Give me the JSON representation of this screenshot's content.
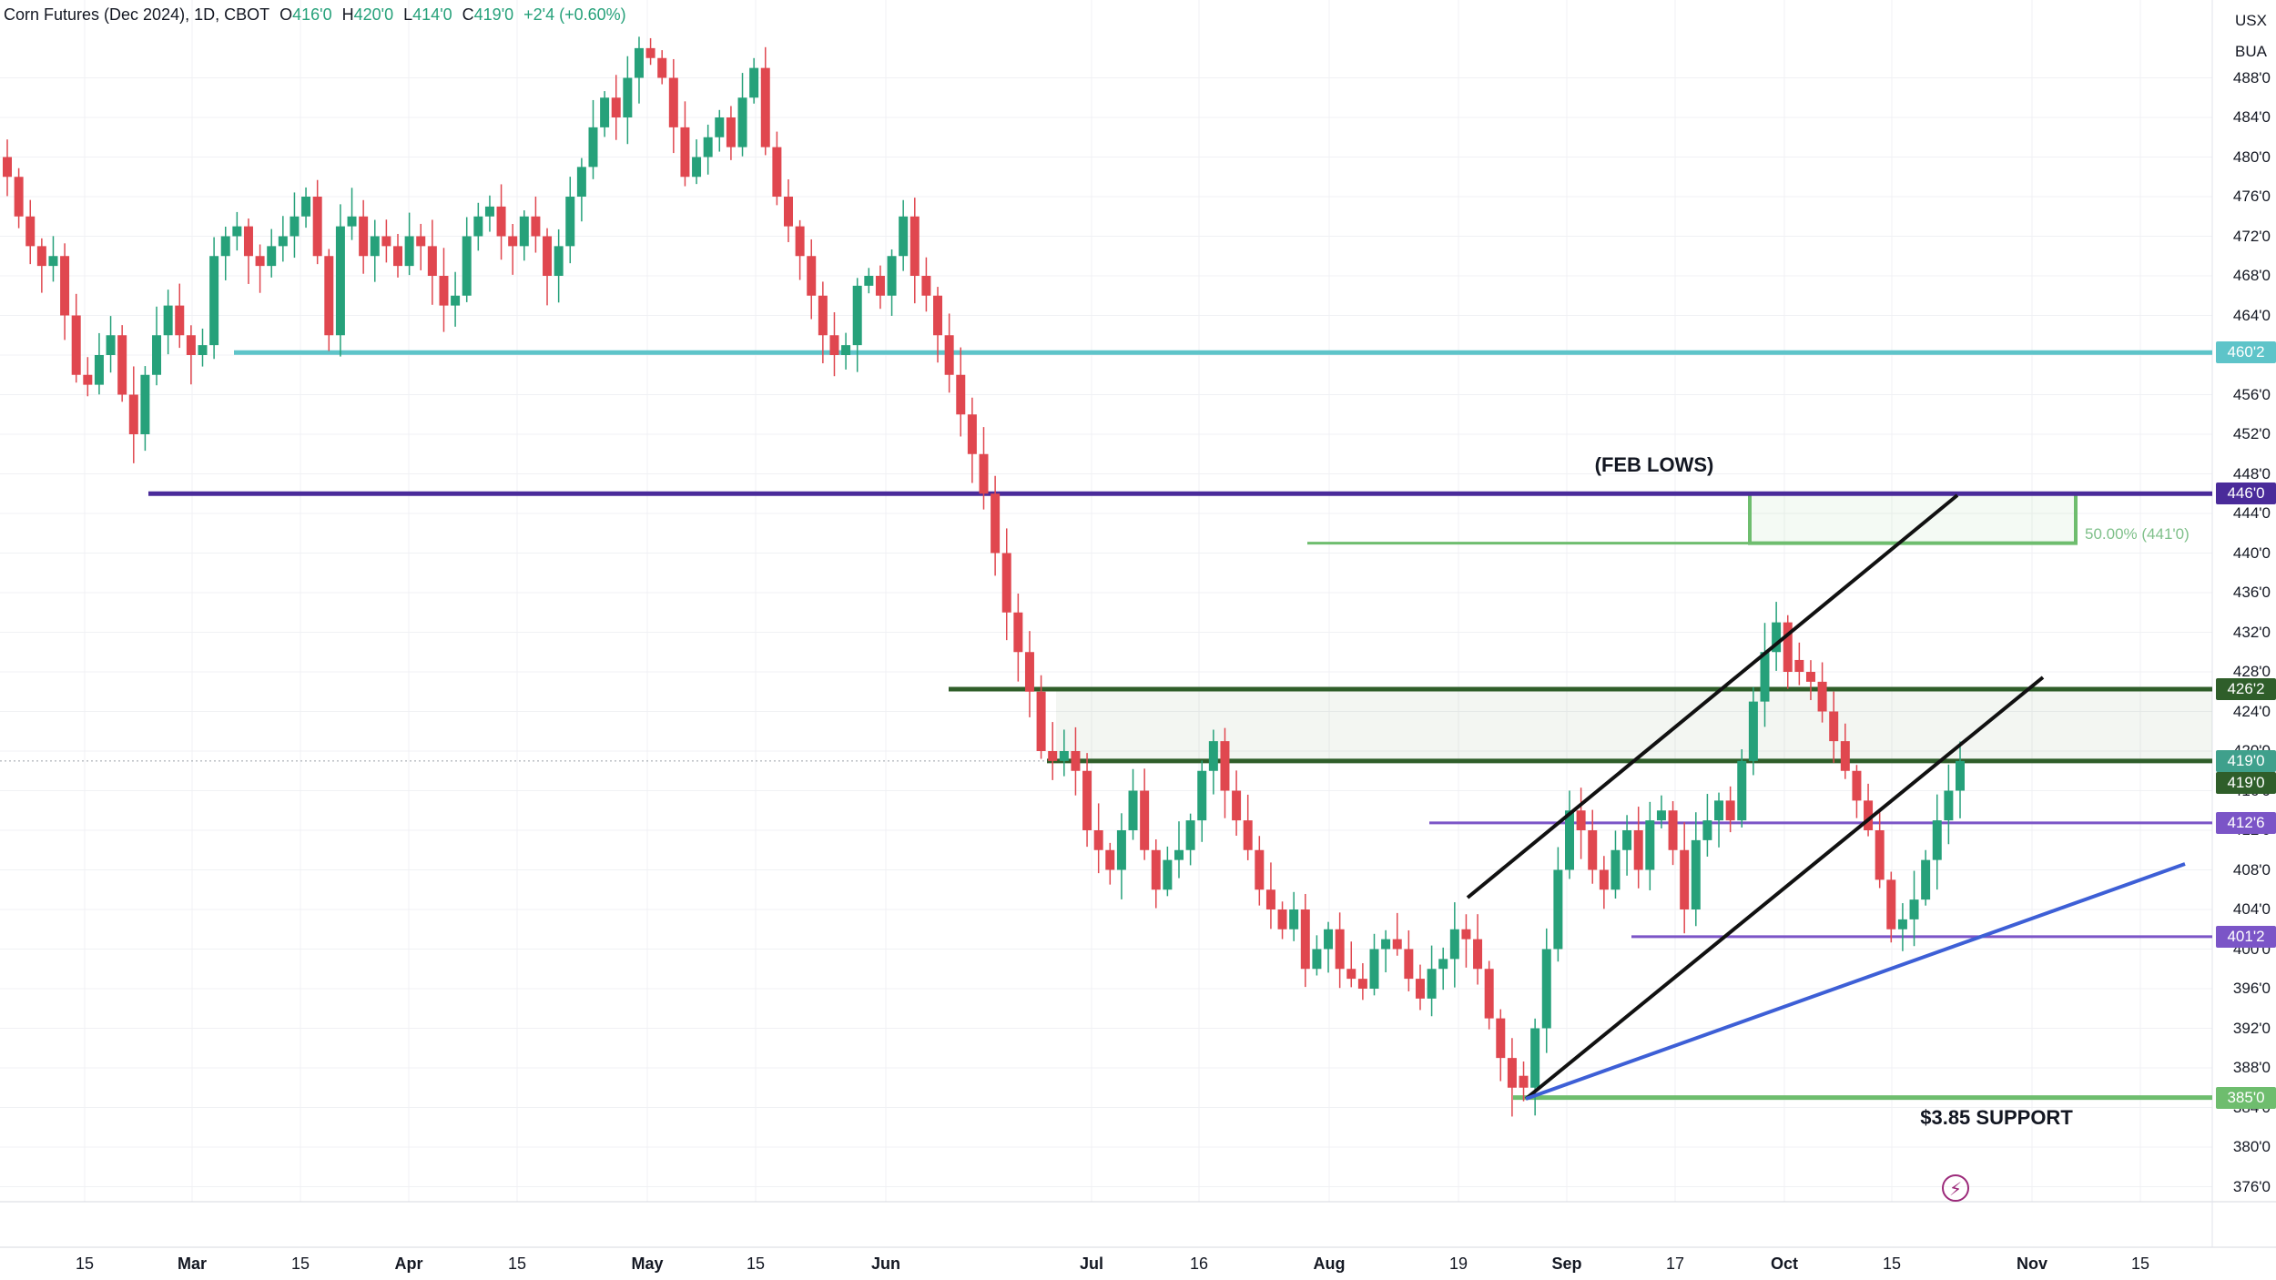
{
  "header": {
    "symbol": "Corn Futures (Dec 2024), 1D, CBOT",
    "open_label": "O",
    "open": "416'0",
    "high_label": "H",
    "high": "420'0",
    "low_label": "L",
    "low": "414'0",
    "close_label": "C",
    "close": "419'0",
    "change": "+2'4 (+0.60%)"
  },
  "currency": {
    "unit": "USX",
    "per": "BUA"
  },
  "colors": {
    "up": "#26a17a",
    "down": "#e0474f"
  },
  "chart_data": {
    "type": "candlestick",
    "y_ticks": [
      "376'0",
      "380'0",
      "384'0",
      "388'0",
      "392'0",
      "396'0",
      "400'0",
      "404'0",
      "408'0",
      "412'0",
      "416'0",
      "420'0",
      "424'0",
      "428'0",
      "432'0",
      "436'0",
      "440'0",
      "444'0",
      "448'0",
      "452'0",
      "456'0",
      "460'0",
      "464'0",
      "468'0",
      "472'0",
      "476'0",
      "480'0",
      "484'0",
      "488'0"
    ],
    "ylim": [
      374,
      494
    ],
    "x_ticks": [
      {
        "label": "15",
        "major": false
      },
      {
        "label": "Mar",
        "major": true
      },
      {
        "label": "15",
        "major": false
      },
      {
        "label": "Apr",
        "major": true
      },
      {
        "label": "15",
        "major": false
      },
      {
        "label": "May",
        "major": true
      },
      {
        "label": "15",
        "major": false
      },
      {
        "label": "Jun",
        "major": true
      },
      {
        "label": "Jul",
        "major": true
      },
      {
        "label": "16",
        "major": false
      },
      {
        "label": "Aug",
        "major": true
      },
      {
        "label": "19",
        "major": false
      },
      {
        "label": "Sep",
        "major": true
      },
      {
        "label": "17",
        "major": false
      },
      {
        "label": "Oct",
        "major": true
      },
      {
        "label": "15",
        "major": false
      },
      {
        "label": "Nov",
        "major": true
      },
      {
        "label": "15",
        "major": false
      }
    ],
    "closes": [
      478,
      474,
      471,
      469,
      470,
      464,
      458,
      457,
      460,
      462,
      456,
      452,
      458,
      462,
      465,
      462,
      460,
      461,
      470,
      472,
      473,
      470,
      469,
      471,
      472,
      474,
      476,
      470,
      462,
      473,
      474,
      470,
      472,
      471,
      469,
      472,
      471,
      468,
      465,
      466,
      472,
      474,
      475,
      472,
      471,
      474,
      472,
      468,
      471,
      476,
      479,
      483,
      486,
      484,
      488,
      491,
      490,
      488,
      483,
      478,
      480,
      482,
      484,
      481,
      486,
      489,
      481,
      476,
      473,
      470,
      466,
      462,
      460,
      461,
      467,
      468,
      466,
      470,
      474,
      468,
      466,
      462,
      458,
      454,
      450,
      446,
      440,
      434,
      430,
      426,
      420,
      419,
      420,
      418,
      412,
      410,
      408,
      412,
      416,
      410,
      406,
      409,
      410,
      413,
      418,
      421,
      416,
      413,
      410,
      406,
      404,
      402,
      404,
      398,
      400,
      402,
      398,
      397,
      396,
      400,
      401,
      400,
      397,
      395,
      398,
      399,
      402,
      401,
      398,
      393,
      389,
      386,
      386,
      392,
      400,
      408,
      414,
      412,
      408,
      406,
      410,
      412,
      408,
      413,
      414,
      410,
      404,
      411,
      413,
      415,
      413,
      419,
      425,
      430,
      433,
      428,
      428,
      427,
      424,
      421,
      418,
      415,
      412,
      407,
      402,
      403,
      405,
      409,
      413,
      416,
      419
    ],
    "levels": [
      {
        "label": "460'2",
        "value": 460.25,
        "color": "#5ec4c9"
      },
      {
        "label": "446'0",
        "value": 446,
        "color": "#4a2b9a"
      },
      {
        "label": "426'2",
        "value": 426.25,
        "color": "#2f5e2a"
      },
      {
        "label": "419'0",
        "value": 419,
        "color": "#2f5e2a"
      },
      {
        "label": "412'6",
        "value": 412.75,
        "color": "#7b55c7"
      },
      {
        "label": "401'2",
        "value": 401.25,
        "color": "#7b55c7"
      },
      {
        "label": "385'0",
        "value": 385,
        "color": "#6ebd6e"
      }
    ],
    "last_price": {
      "label": "419'0",
      "value": 419,
      "color": "#3fa08c"
    },
    "zones": [
      {
        "from": 419,
        "to": 426.25,
        "color": "#2f5e2a"
      },
      {
        "from": 441,
        "to": 446,
        "color": "#6ebd6e"
      }
    ],
    "fib_label": "50.00% (441'0)",
    "annotations": [
      "(FEB LOWS)",
      "$3.85 SUPPORT"
    ]
  }
}
